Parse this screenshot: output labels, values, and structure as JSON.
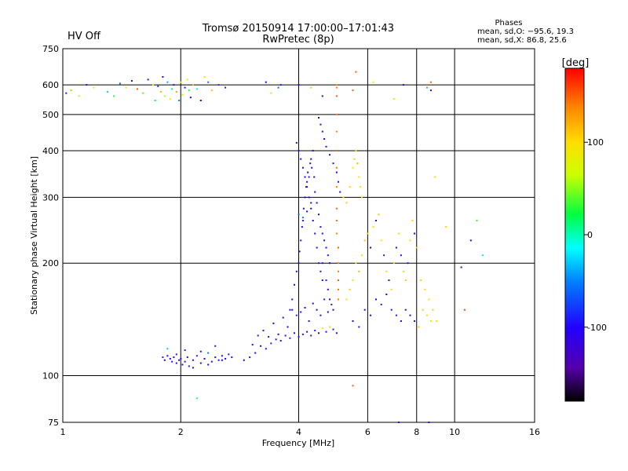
{
  "chart_data": {
    "type": "scatter",
    "title": "Tromsø 20150914 17:00:00–17:01:43",
    "subtitle": "RwPretec (8p)",
    "status": "HV Off",
    "status_color": "#cc0000",
    "stats_title": "Phases",
    "stats_o": "mean, sd,O: −95.6, 19.3",
    "stats_x": "mean, sd,X: 86.8, 25.6",
    "xlabel": "Frequency [MHz]",
    "ylabel": "Stationary phase Virtual Height [km]",
    "x_scale": "log",
    "y_scale": "log",
    "xlim": [
      1,
      16
    ],
    "ylim": [
      75,
      750
    ],
    "x_ticks": [
      1,
      2,
      4,
      6,
      8,
      10,
      16
    ],
    "y_ticks": [
      75,
      100,
      200,
      300,
      400,
      500,
      600,
      750
    ],
    "grid": true,
    "colorbar": {
      "label": "[deg]",
      "range": [
        -180,
        180
      ],
      "ticks": [
        100,
        0,
        -100
      ]
    },
    "series": [
      {
        "x": [
          1.02,
          1.05,
          1.1,
          1.15,
          1.2,
          1.3,
          1.35,
          1.4,
          1.45,
          1.5,
          1.55,
          1.6,
          1.65,
          1.7,
          1.72,
          1.75,
          1.78,
          1.8,
          1.82,
          1.85,
          1.88,
          1.9,
          1.92,
          1.95,
          1.98,
          2.0,
          2.02,
          2.05,
          2.08,
          2.1,
          2.12,
          2.15,
          2.2,
          2.25,
          2.3,
          2.35,
          2.4,
          2.5,
          2.6,
          3.3,
          3.4,
          3.55,
          3.6,
          4.0,
          4.3,
          4.6,
          5.0,
          5.5,
          6.2,
          7.0,
          7.4,
          8.5,
          8.7
        ],
        "y": [
          570,
          580,
          560,
          600,
          590,
          575,
          560,
          605,
          590,
          615,
          585,
          570,
          620,
          600,
          545,
          595,
          575,
          630,
          560,
          610,
          550,
          585,
          600,
          575,
          545,
          610,
          565,
          590,
          620,
          580,
          555,
          600,
          585,
          545,
          630,
          610,
          580,
          600,
          590,
          610,
          570,
          590,
          600,
          600,
          590,
          560,
          590,
          580,
          610,
          550,
          600,
          590,
          610
        ],
        "phase": [
          -90,
          120,
          60,
          -100,
          90,
          -30,
          30,
          -60,
          100,
          -110,
          150,
          40,
          -95,
          80,
          20,
          -80,
          120,
          -100,
          60,
          -40,
          90,
          10,
          -120,
          130,
          -50,
          100,
          60,
          -90,
          80,
          30,
          -100,
          120,
          -20,
          -110,
          70,
          -60,
          110,
          -80,
          -90,
          -100,
          100,
          -60,
          -95,
          -100,
          110,
          -120,
          140,
          150,
          80,
          60,
          -100,
          -30,
          150
        ]
      },
      {
        "x": [
          1.8,
          1.82,
          1.85,
          1.88,
          1.9,
          1.92,
          1.95,
          1.98,
          2.0,
          2.02,
          2.05,
          2.08,
          2.1,
          2.15,
          2.2,
          2.25,
          2.3,
          2.35,
          2.4,
          2.45,
          2.5,
          2.55,
          2.6,
          2.65,
          2.7,
          1.85,
          1.95,
          2.05,
          2.15,
          2.25,
          2.35,
          2.45,
          2.55
        ],
        "y": [
          112,
          110,
          113,
          111,
          109,
          112,
          114,
          110,
          111,
          107,
          109,
          112,
          106,
          110,
          113,
          108,
          111,
          115,
          109,
          112,
          110,
          113,
          111,
          114,
          112,
          118,
          108,
          117,
          105,
          116,
          107,
          120,
          110
        ],
        "phase": [
          -95,
          -100,
          -98,
          -105,
          -90,
          -100,
          -92,
          -110,
          -95,
          -100,
          -97,
          -102,
          -95,
          -100,
          -90,
          -105,
          -98,
          -60,
          -100,
          -95,
          -92,
          -100,
          -97,
          -95,
          -100,
          -30,
          -100,
          -95,
          -100,
          -98,
          -105,
          -90,
          -100
        ]
      },
      {
        "x": [
          2.9,
          3.0,
          3.1,
          3.2,
          3.3,
          3.4,
          3.5,
          3.6,
          3.7,
          3.8,
          3.9,
          4.0,
          4.1,
          4.2,
          4.3,
          4.4,
          4.5,
          4.6,
          4.7,
          4.8,
          4.9,
          5.0,
          3.05,
          3.15,
          3.25,
          3.35,
          3.45,
          3.55,
          3.65,
          3.75,
          3.85,
          3.95,
          4.05,
          4.15,
          4.25,
          4.35,
          4.45,
          4.55,
          4.65,
          4.75,
          4.85
        ],
        "y": [
          110,
          112,
          115,
          120,
          118,
          122,
          125,
          124,
          128,
          126,
          130,
          127,
          129,
          131,
          128,
          132,
          130,
          134,
          131,
          135,
          133,
          130,
          121,
          128,
          132,
          127,
          138,
          129,
          143,
          135,
          150,
          145,
          148,
          152,
          140,
          156,
          150,
          145,
          160,
          148,
          155
        ],
        "phase": [
          -100,
          -95,
          -98,
          -102,
          -95,
          -90,
          -100,
          -105,
          -95,
          -92,
          -100,
          -98,
          -96,
          -100,
          -95,
          -90,
          -100,
          90,
          -95,
          100,
          -92,
          -100,
          -100,
          -95,
          -105,
          -98,
          -100,
          -95,
          -110,
          -100,
          -95,
          -92,
          -100,
          -98,
          -95,
          -100,
          -105,
          -96,
          -90,
          -100,
          -95
        ]
      },
      {
        "x": [
          3.8,
          3.85,
          3.9,
          3.95,
          4.0,
          4.02,
          4.05,
          4.08,
          4.1,
          4.12,
          4.15,
          4.18,
          4.2,
          4.22,
          4.25,
          4.28,
          4.3,
          4.32,
          4.35,
          4.38,
          4.4,
          4.45,
          4.5,
          4.55,
          4.6,
          4.65,
          4.7,
          4.75,
          4.8,
          3.95,
          4.0,
          4.05,
          4.1,
          4.15,
          4.2,
          4.25,
          4.3,
          4.35,
          4.4,
          4.45,
          4.5,
          4.55,
          4.6,
          4.0,
          4.1,
          4.2,
          4.3
        ],
        "y": [
          150,
          160,
          175,
          190,
          200,
          215,
          230,
          250,
          260,
          280,
          300,
          320,
          330,
          350,
          340,
          370,
          380,
          360,
          400,
          340,
          310,
          290,
          270,
          250,
          240,
          230,
          220,
          210,
          200,
          420,
          400,
          380,
          360,
          340,
          320,
          300,
          280,
          260,
          240,
          220,
          200,
          190,
          180,
          270,
          265,
          275,
          290
        ],
        "phase": [
          -100,
          -95,
          -98,
          -102,
          -100,
          -105,
          -96,
          -100,
          -95,
          -98,
          -100,
          -102,
          -95,
          -100,
          -98,
          -96,
          -100,
          -95,
          -102,
          -100,
          -98,
          -95,
          -100,
          -105,
          -96,
          -100,
          -98,
          -95,
          -100,
          -100,
          -95,
          -98,
          -102,
          -100,
          -95,
          -98,
          -100,
          -105,
          -96,
          -100,
          -98,
          -95,
          -100,
          -60,
          -55,
          -100,
          -98
        ]
      },
      {
        "x": [
          4.5,
          4.55,
          4.6,
          4.65,
          4.7,
          4.8,
          4.9,
          5.0,
          5.05,
          5.1,
          5.2,
          5.3,
          5.4,
          5.5,
          5.55,
          5.6,
          5.65,
          5.7,
          5.75,
          5.8,
          4.6,
          4.7,
          4.75,
          4.8,
          4.9
        ],
        "y": [
          490,
          470,
          450,
          430,
          410,
          390,
          370,
          350,
          330,
          310,
          300,
          290,
          320,
          360,
          380,
          400,
          370,
          340,
          320,
          300,
          200,
          180,
          170,
          160,
          150
        ],
        "phase": [
          -100,
          -95,
          -98,
          -102,
          -100,
          -105,
          -96,
          -100,
          -95,
          -98,
          100,
          110,
          105,
          90,
          110,
          100,
          120,
          95,
          100,
          105,
          -100,
          -95,
          -102,
          -98,
          -100
        ]
      },
      {
        "x": [
          5.0,
          5.0,
          5.0,
          5.0,
          5.0,
          5.0,
          5.0,
          5.0,
          5.0,
          5.0,
          5.05,
          5.05,
          5.05,
          5.05,
          5.05,
          5.05
        ],
        "y": [
          600,
          560,
          500,
          450,
          400,
          360,
          320,
          280,
          260,
          240,
          220,
          200,
          190,
          180,
          170,
          160
        ],
        "phase": [
          140,
          150,
          145,
          140,
          150,
          145,
          140,
          150,
          145,
          140,
          150,
          145,
          140,
          150,
          145,
          140
        ]
      },
      {
        "x": [
          5.3,
          5.4,
          5.5,
          5.6,
          5.7,
          5.8,
          5.9,
          6.0,
          6.1,
          6.2,
          6.3,
          6.4,
          6.5,
          6.6,
          6.7,
          6.8,
          6.9,
          7.0,
          7.1,
          7.2,
          7.3,
          7.4,
          7.5,
          7.6,
          7.7,
          7.8,
          7.9,
          8.0,
          8.2,
          8.4,
          8.6,
          8.8,
          9.0,
          5.5,
          5.7,
          5.9,
          6.1,
          6.3,
          6.5,
          6.7,
          6.9,
          7.1,
          7.3,
          7.5,
          7.7,
          7.9,
          8.1,
          8.3,
          8.5,
          8.7
        ],
        "y": [
          160,
          170,
          180,
          200,
          190,
          210,
          230,
          240,
          220,
          250,
          260,
          270,
          230,
          210,
          190,
          180,
          170,
          200,
          220,
          240,
          210,
          190,
          180,
          200,
          230,
          260,
          240,
          220,
          180,
          170,
          160,
          150,
          140,
          140,
          135,
          150,
          145,
          160,
          155,
          165,
          150,
          145,
          140,
          150,
          145,
          140,
          135,
          150,
          145,
          140
        ],
        "phase": [
          100,
          110,
          105,
          95,
          120,
          100,
          110,
          105,
          -100,
          100,
          -95,
          110,
          100,
          -90,
          105,
          -100,
          95,
          110,
          -100,
          100,
          -95,
          105,
          110,
          -100,
          95,
          100,
          -100,
          110,
          105,
          100,
          95,
          110,
          100,
          -100,
          -95,
          -100,
          -98,
          -100,
          -95,
          -102,
          -100,
          -95,
          -98,
          -100,
          -100,
          -95,
          110,
          105,
          100,
          100
        ]
      },
      {
        "x": [
          8.5,
          8.7,
          8.9,
          9.5,
          10.4,
          10.6,
          11.0,
          11.4,
          11.8
        ],
        "y": [
          600,
          580,
          340,
          250,
          195,
          150,
          230,
          260,
          210
        ],
        "phase": [
          150,
          -100,
          100,
          100,
          -100,
          160,
          -100,
          30,
          -20
        ]
      },
      {
        "x": [
          2.2,
          5.5,
          5.6,
          7.2,
          8.6
        ],
        "y": [
          87,
          94,
          650,
          75,
          75
        ],
        "phase": [
          0,
          150,
          150,
          -100,
          -100
        ]
      }
    ]
  }
}
